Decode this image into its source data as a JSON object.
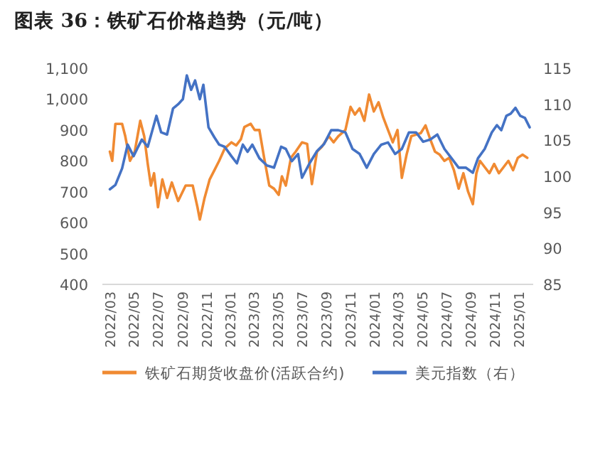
{
  "chart_data": {
    "type": "line",
    "title": "图表 36：铁矿石价格趋势（元/吨）",
    "xlim": [
      "2022-02-10",
      "2025-02-06"
    ],
    "xticks": [
      {
        "value": "2022-03",
        "label": "2022/03"
      },
      {
        "value": "2022-05",
        "label": "2022/05"
      },
      {
        "value": "2022-07",
        "label": "2022/07"
      },
      {
        "value": "2022-09",
        "label": "2022/09"
      },
      {
        "value": "2022-11",
        "label": "2022/11"
      },
      {
        "value": "2023-01",
        "label": "2023/01"
      },
      {
        "value": "2023-03",
        "label": "2023/03"
      },
      {
        "value": "2023-05",
        "label": "2023/05"
      },
      {
        "value": "2023-07",
        "label": "2023/07"
      },
      {
        "value": "2023-09",
        "label": "2023/09"
      },
      {
        "value": "2023-11",
        "label": "2023/11"
      },
      {
        "value": "2024-01",
        "label": "2024/01"
      },
      {
        "value": "2024-03",
        "label": "2024/03"
      },
      {
        "value": "2024-05",
        "label": "2024/05"
      },
      {
        "value": "2024-07",
        "label": "2024/07"
      },
      {
        "value": "2024-09",
        "label": "2024/09"
      },
      {
        "value": "2024-11",
        "label": "2024/11"
      },
      {
        "value": "2025-01",
        "label": "2025/01"
      }
    ],
    "ylim": [
      400,
      1100
    ],
    "yticks": [
      400,
      500,
      600,
      700,
      800,
      900,
      {
        "value": 1000,
        "label": "1,000"
      },
      {
        "value": 1100,
        "label": "1,100"
      }
    ],
    "y2lim": [
      85,
      115
    ],
    "y2ticks": [
      85,
      90,
      95,
      100,
      105,
      110,
      115
    ],
    "legend": "bottom",
    "series": [
      {
        "name": "铁矿石期货收盘价(活跃合约)",
        "color": "#f08a32",
        "x": [
          "2022-03-01",
          "2022-03-07",
          "2022-03-15",
          "2022-04-01",
          "2022-04-09",
          "2022-04-21",
          "2022-05-03",
          "2022-05-17",
          "2022-05-27",
          "2022-06-05",
          "2022-06-13",
          "2022-06-21",
          "2022-07-01",
          "2022-07-12",
          "2022-07-24",
          "2022-08-05",
          "2022-08-21",
          "2022-09-09",
          "2022-09-27",
          "2022-10-09",
          "2022-10-15",
          "2022-10-27",
          "2022-11-09",
          "2022-11-21",
          "2022-12-03",
          "2022-12-17",
          "2023-01-03",
          "2023-01-15",
          "2023-01-27",
          "2023-02-05",
          "2023-02-21",
          "2023-03-03",
          "2023-03-15",
          "2023-03-27",
          "2023-04-09",
          "2023-04-21",
          "2023-05-03",
          "2023-05-11",
          "2023-05-21",
          "2023-06-03",
          "2023-06-15",
          "2023-07-01",
          "2023-07-14",
          "2023-07-26",
          "2023-08-08",
          "2023-08-20",
          "2023-09-07",
          "2023-09-19",
          "2023-10-01",
          "2023-10-19",
          "2023-11-01",
          "2023-11-12",
          "2023-11-24",
          "2023-12-06",
          "2023-12-18",
          "2023-12-30",
          "2024-01-11",
          "2024-01-23",
          "2024-02-04",
          "2024-02-16",
          "2024-02-28",
          "2024-03-10",
          "2024-03-22",
          "2024-04-03",
          "2024-04-15",
          "2024-04-27",
          "2024-05-09",
          "2024-05-21",
          "2024-06-02",
          "2024-06-14",
          "2024-06-26",
          "2024-07-08",
          "2024-07-20",
          "2024-08-01",
          "2024-08-13",
          "2024-08-25",
          "2024-09-06",
          "2024-09-15",
          "2024-09-24",
          "2024-10-06",
          "2024-10-18",
          "2024-10-30",
          "2024-11-11",
          "2024-11-23",
          "2024-12-05",
          "2024-12-17",
          "2024-12-29",
          "2025-01-10",
          "2025-01-22"
        ],
        "values": [
          830,
          800,
          920,
          920,
          880,
          800,
          830,
          930,
          880,
          790,
          720,
          760,
          650,
          740,
          680,
          730,
          670,
          720,
          720,
          650,
          610,
          680,
          740,
          770,
          800,
          840,
          860,
          850,
          870,
          910,
          920,
          900,
          900,
          810,
          720,
          710,
          690,
          750,
          720,
          810,
          830,
          860,
          855,
          725,
          830,
          845,
          880,
          860,
          880,
          900,
          975,
          950,
          970,
          930,
          1015,
          960,
          990,
          940,
          900,
          860,
          900,
          745,
          820,
          880,
          885,
          890,
          915,
          870,
          830,
          820,
          800,
          810,
          770,
          710,
          760,
          700,
          660,
          760,
          800,
          780,
          760,
          790,
          760,
          780,
          800,
          770,
          810,
          820,
          810
        ]
      },
      {
        "name": "美元指数（右）",
        "axis": "y2",
        "color": "#4472c4",
        "x": [
          "2022-03-01",
          "2022-03-15",
          "2022-04-01",
          "2022-04-15",
          "2022-04-30",
          "2022-05-09",
          "2022-05-21",
          "2022-06-05",
          "2022-06-27",
          "2022-07-09",
          "2022-07-24",
          "2022-08-08",
          "2022-08-21",
          "2022-09-02",
          "2022-09-12",
          "2022-09-23",
          "2022-10-03",
          "2022-10-15",
          "2022-10-24",
          "2022-11-06",
          "2022-11-21",
          "2022-12-03",
          "2022-12-17",
          "2023-01-03",
          "2023-01-17",
          "2023-02-01",
          "2023-02-13",
          "2023-02-25",
          "2023-03-15",
          "2023-04-03",
          "2023-04-21",
          "2023-05-09",
          "2023-05-21",
          "2023-06-05",
          "2023-06-21",
          "2023-07-01",
          "2023-07-20",
          "2023-08-08",
          "2023-08-26",
          "2023-09-13",
          "2023-10-01",
          "2023-10-19",
          "2023-11-06",
          "2023-11-24",
          "2023-12-12",
          "2023-12-30",
          "2024-01-18",
          "2024-02-04",
          "2024-02-22",
          "2024-03-10",
          "2024-03-28",
          "2024-04-15",
          "2024-05-03",
          "2024-05-21",
          "2024-06-08",
          "2024-06-26",
          "2024-07-14",
          "2024-08-01",
          "2024-08-19",
          "2024-09-06",
          "2024-09-19",
          "2024-10-06",
          "2024-10-24",
          "2024-11-06",
          "2024-11-17",
          "2024-11-30",
          "2024-12-11",
          "2024-12-23",
          "2025-01-04",
          "2025-01-16",
          "2025-01-28"
        ],
        "values": [
          98.2,
          98.8,
          101.1,
          104.4,
          102.8,
          103.8,
          105.1,
          104.1,
          108.4,
          106.1,
          105.8,
          109.4,
          110.0,
          110.7,
          114.0,
          112.0,
          113.3,
          110.7,
          112.7,
          106.8,
          105.4,
          104.4,
          104.1,
          102.8,
          101.8,
          104.4,
          103.4,
          104.4,
          102.5,
          101.5,
          101.2,
          104.1,
          103.8,
          102.1,
          103.1,
          99.8,
          101.8,
          103.5,
          104.5,
          106.4,
          106.4,
          106.1,
          103.8,
          103.1,
          101.2,
          103.1,
          104.4,
          104.7,
          103.1,
          103.8,
          106.1,
          106.1,
          104.8,
          105.1,
          105.8,
          103.8,
          102.5,
          101.2,
          101.2,
          100.5,
          102.5,
          103.8,
          106.1,
          107.1,
          106.4,
          108.4,
          108.7,
          109.5,
          108.4,
          108.1,
          106.8
        ]
      }
    ]
  }
}
